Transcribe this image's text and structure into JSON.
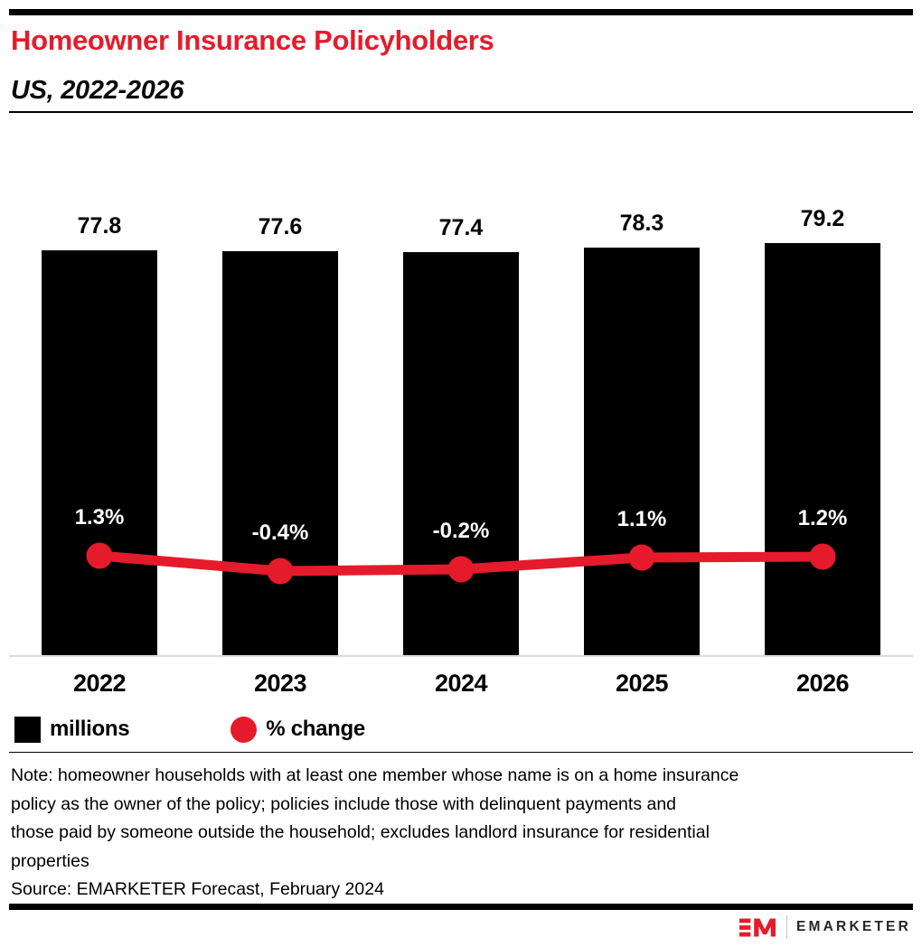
{
  "header": {
    "title": "Homeowner Insurance Policyholders",
    "subtitle": "US, 2022-2026"
  },
  "chart_data": {
    "type": "bar",
    "subtype": "bar-with-line-overlay",
    "title": "Homeowner Insurance Policyholders",
    "subtitle": "US, 2022-2026",
    "categories": [
      "2022",
      "2023",
      "2024",
      "2025",
      "2026"
    ],
    "series": [
      {
        "name": "millions",
        "type": "bar",
        "color": "#000000",
        "values": [
          77.8,
          77.6,
          77.4,
          78.3,
          79.2
        ],
        "labels": [
          "77.8",
          "77.6",
          "77.4",
          "78.3",
          "79.2"
        ]
      },
      {
        "name": "% change",
        "type": "line",
        "color": "#e51b2c",
        "values": [
          1.3,
          -0.4,
          -0.2,
          1.1,
          1.2
        ],
        "labels": [
          "1.3%",
          "-0.4%",
          "-0.2%",
          "1.1%",
          "1.2%"
        ]
      }
    ],
    "xlabel": "",
    "ylabel": "",
    "ylim_bar": [
      0,
      80
    ],
    "grid": false,
    "y_axis_shown": false,
    "legend_position": "bottom-left"
  },
  "legend": {
    "items": [
      {
        "label": "millions",
        "swatch": "square",
        "color": "#000000"
      },
      {
        "label": "% change",
        "swatch": "circle",
        "color": "#e51b2c"
      }
    ]
  },
  "footer": {
    "note_lines": [
      "Note: homeowner households with at least one member whose name is on a home insurance",
      "policy as the owner of the policy; policies include those with delinquent payments and",
      "those paid by someone outside the household; excludes landlord insurance for residential",
      "properties"
    ],
    "source": "Source: EMARKETER Forecast, February 2024",
    "logo_text": "EMARKETER"
  },
  "colors": {
    "accent_red": "#e51b2c",
    "bar_black": "#000000",
    "axis_line": "#d9dce6",
    "background": "#ffffff"
  }
}
